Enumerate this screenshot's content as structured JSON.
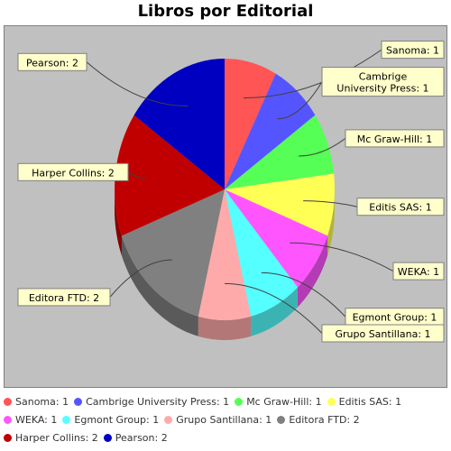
{
  "chart_data": {
    "type": "pie",
    "title": "Libros por Editorial",
    "legend_position": "bottom",
    "slices": [
      {
        "label": "Sanoma",
        "value": 1,
        "color": "#ff5555"
      },
      {
        "label": "Cambrige University Press",
        "value": 1,
        "color": "#5555ff"
      },
      {
        "label": "Mc Graw-Hill",
        "value": 1,
        "color": "#55ff55"
      },
      {
        "label": "Editis SAS",
        "value": 1,
        "color": "#ffff55"
      },
      {
        "label": "WEKA",
        "value": 1,
        "color": "#ff55ff"
      },
      {
        "label": "Egmont Group",
        "value": 1,
        "color": "#55ffff"
      },
      {
        "label": "Grupo Santillana",
        "value": 1,
        "color": "#ffaaaa"
      },
      {
        "label": "Editora FTD",
        "value": 2,
        "color": "#808080"
      },
      {
        "label": "Harper Collins",
        "value": 2,
        "color": "#c00000"
      },
      {
        "label": "Pearson",
        "value": 2,
        "color": "#0000c0"
      }
    ],
    "callouts": [
      [
        "Sanoma: 1"
      ],
      [
        "Cambrige",
        "University Press: 1"
      ],
      [
        "Mc Graw-Hill: 1"
      ],
      [
        "Editis SAS: 1"
      ],
      [
        "WEKA: 1"
      ],
      [
        "Egmont Group: 1"
      ],
      [
        "Grupo Santillana: 1"
      ],
      [
        "Editora FTD: 2"
      ],
      [
        "Harper Collins: 2"
      ],
      [
        "Pearson: 2"
      ]
    ],
    "legend_rows": [
      [
        "Sanoma: 1",
        "Cambrige University Press: 1",
        "Mc Graw-Hill: 1",
        "Editis SAS: 1"
      ],
      [
        "WEKA: 1",
        "Egmont Group: 1",
        "Grupo Santillana: 1",
        "Editora FTD: 2"
      ],
      [
        "Harper Collins: 2",
        "Pearson: 2"
      ]
    ]
  },
  "colors": {
    "plot_background": "#c0c0c0",
    "callout_fill": "#ffffcc",
    "depth_shade": 0.7
  }
}
